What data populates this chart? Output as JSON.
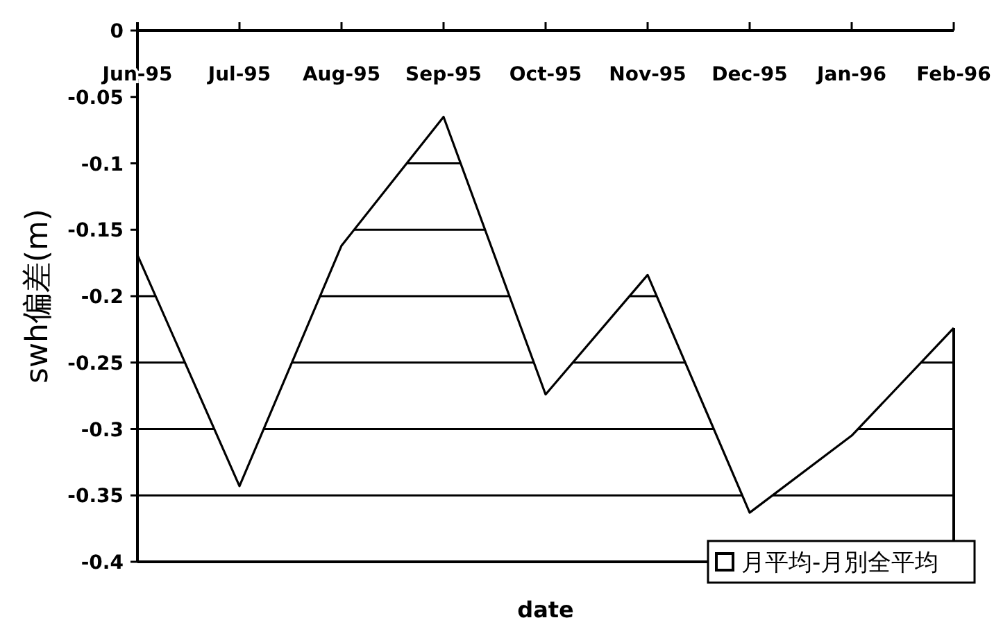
{
  "chart_data": {
    "type": "line",
    "xlabel": "date",
    "ylabel": "swh偏差(m)",
    "categories": [
      "Jun-95",
      "Jul-95",
      "Aug-95",
      "Sep-95",
      "Oct-95",
      "Nov-95",
      "Dec-95",
      "Jan-96",
      "Feb-96"
    ],
    "series": [
      {
        "name": "月平均-月別全平均",
        "color": "#000000",
        "values": [
          -0.169,
          -0.343,
          -0.162,
          -0.065,
          -0.274,
          -0.184,
          -0.363,
          -0.305,
          -0.224
        ]
      }
    ],
    "ylim": [
      -0.4,
      0
    ],
    "yticks": [
      0,
      -0.05,
      -0.1,
      -0.15,
      -0.2,
      -0.25,
      -0.3,
      -0.35,
      -0.4
    ],
    "grid": "y",
    "legend": "bottom right"
  }
}
